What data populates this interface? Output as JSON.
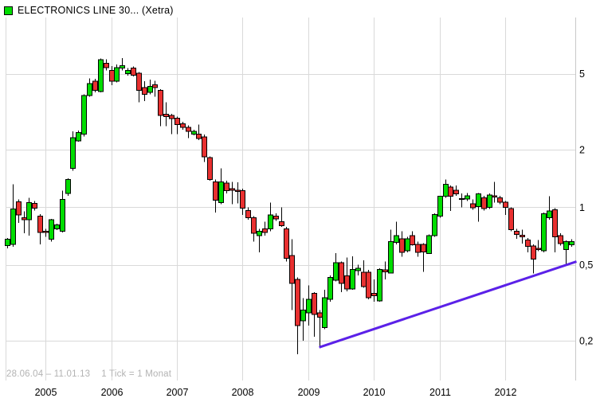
{
  "header": {
    "title": "ELECTRONICS LINE 30... (Xetra)",
    "legend_color": "#00dd00"
  },
  "footer": {
    "range_text": "28.06.04 – 11.01.13",
    "tick_text": "1 Tick = 1 Monat"
  },
  "chart_data": {
    "type": "candlestick",
    "scale": "log",
    "interval": "1 month",
    "title": "ELECTRONICS LINE 30... (Xetra)",
    "ylim": [
      0.16,
      6.5
    ],
    "grid": true,
    "y_ticks": [
      {
        "label": "5",
        "value": 5
      },
      {
        "label": "2",
        "value": 2
      },
      {
        "label": "1",
        "value": 1
      },
      {
        "label": "0,5",
        "value": 0.5
      },
      {
        "label": "0,2",
        "value": 0.2
      }
    ],
    "x_ticks": [
      "2005",
      "2006",
      "2007",
      "2008",
      "2009",
      "2010",
      "2011",
      "2012"
    ],
    "colors": {
      "up": "#00dd00",
      "down": "#e83030",
      "wick": "#000000",
      "grid": "#d9d9d9",
      "axis": "#c8c8c8",
      "trendline": "#5b21e8"
    },
    "trendline": {
      "start": {
        "month": "2009-03",
        "value": 0.185
      },
      "end": {
        "month": "2013-02",
        "value": 0.52
      }
    },
    "candles": [
      [
        "2004-06",
        0.63,
        0.69,
        0.61,
        0.68
      ],
      [
        "2004-07",
        0.64,
        1.32,
        0.62,
        0.98
      ],
      [
        "2004-08",
        1.07,
        1.1,
        0.83,
        0.91
      ],
      [
        "2004-09",
        0.88,
        0.95,
        0.73,
        0.86
      ],
      [
        "2004-10",
        0.86,
        1.12,
        0.71,
        1.06
      ],
      [
        "2004-11",
        1.05,
        1.08,
        0.96,
        0.99
      ],
      [
        "2004-12",
        0.9,
        0.92,
        0.64,
        0.74
      ],
      [
        "2005-01",
        0.75,
        0.77,
        0.7,
        0.74
      ],
      [
        "2005-02",
        0.68,
        0.87,
        0.66,
        0.86
      ],
      [
        "2005-03",
        0.77,
        0.82,
        0.76,
        0.81
      ],
      [
        "2005-04",
        0.75,
        1.22,
        0.74,
        1.1
      ],
      [
        "2005-05",
        1.18,
        1.42,
        1.15,
        1.4
      ],
      [
        "2005-06",
        1.6,
        2.5,
        1.55,
        2.31
      ],
      [
        "2005-07",
        2.23,
        2.52,
        2.2,
        2.46
      ],
      [
        "2005-08",
        2.42,
        3.9,
        2.35,
        3.84
      ],
      [
        "2005-09",
        3.84,
        4.73,
        3.8,
        4.44
      ],
      [
        "2005-10",
        4.57,
        4.7,
        4.0,
        4.1
      ],
      [
        "2005-11",
        4.03,
        6.0,
        4.0,
        5.92
      ],
      [
        "2005-12",
        5.66,
        5.95,
        5.2,
        5.37
      ],
      [
        "2006-01",
        5.21,
        5.49,
        4.35,
        4.58
      ],
      [
        "2006-02",
        4.58,
        5.6,
        4.5,
        5.39
      ],
      [
        "2006-03",
        5.35,
        6.03,
        5.2,
        5.5
      ],
      [
        "2006-04",
        5.0,
        5.35,
        4.9,
        5.21
      ],
      [
        "2006-05",
        5.35,
        5.45,
        4.85,
        4.91
      ],
      [
        "2006-06",
        5.04,
        5.1,
        3.55,
        4.1
      ],
      [
        "2006-07",
        4.23,
        4.58,
        3.59,
        3.91
      ],
      [
        "2006-08",
        3.99,
        4.66,
        3.9,
        4.3
      ],
      [
        "2006-09",
        4.37,
        4.6,
        3.8,
        4.23
      ],
      [
        "2006-10",
        4.1,
        4.15,
        2.66,
        3.03
      ],
      [
        "2006-11",
        3.07,
        3.55,
        2.66,
        2.98
      ],
      [
        "2006-12",
        3.03,
        3.08,
        2.42,
        2.91
      ],
      [
        "2007-01",
        2.93,
        2.98,
        2.42,
        2.71
      ],
      [
        "2007-02",
        2.73,
        2.8,
        2.55,
        2.62
      ],
      [
        "2007-03",
        2.62,
        2.68,
        2.3,
        2.5
      ],
      [
        "2007-04",
        2.42,
        2.55,
        2.38,
        2.5
      ],
      [
        "2007-05",
        2.42,
        2.71,
        2.25,
        2.29
      ],
      [
        "2007-06",
        2.34,
        2.4,
        1.73,
        1.84
      ],
      [
        "2007-07",
        1.82,
        1.85,
        1.38,
        1.4
      ],
      [
        "2007-08",
        1.36,
        1.4,
        0.94,
        1.09
      ],
      [
        "2007-09",
        1.06,
        1.6,
        1.04,
        1.36
      ],
      [
        "2007-10",
        1.34,
        1.38,
        1.18,
        1.22
      ],
      [
        "2007-11",
        1.25,
        1.36,
        1.04,
        1.23
      ],
      [
        "2007-12",
        1.23,
        1.35,
        1.05,
        1.21
      ],
      [
        "2008-01",
        1.22,
        1.25,
        0.91,
        0.99
      ],
      [
        "2008-02",
        0.96,
        1.0,
        0.86,
        0.88
      ],
      [
        "2008-03",
        0.88,
        0.9,
        0.66,
        0.73
      ],
      [
        "2008-04",
        0.71,
        0.77,
        0.58,
        0.75
      ],
      [
        "2008-05",
        0.77,
        0.84,
        0.71,
        0.74
      ],
      [
        "2008-06",
        0.77,
        1.06,
        0.75,
        0.91
      ],
      [
        "2008-07",
        0.9,
        0.93,
        0.85,
        0.87
      ],
      [
        "2008-08",
        0.84,
        1.0,
        0.79,
        0.8
      ],
      [
        "2008-09",
        0.77,
        0.79,
        0.52,
        0.54
      ],
      [
        "2008-10",
        0.56,
        0.68,
        0.29,
        0.4
      ],
      [
        "2008-11",
        0.42,
        0.43,
        0.17,
        0.24
      ],
      [
        "2008-12",
        0.255,
        0.335,
        0.2,
        0.29
      ],
      [
        "2009-01",
        0.28,
        0.39,
        0.24,
        0.33
      ],
      [
        "2009-02",
        0.355,
        0.36,
        0.21,
        0.275
      ],
      [
        "2009-03",
        0.28,
        0.29,
        0.186,
        0.266
      ],
      [
        "2009-04",
        0.235,
        0.37,
        0.23,
        0.337
      ],
      [
        "2009-05",
        0.33,
        0.44,
        0.32,
        0.43
      ],
      [
        "2009-06",
        0.415,
        0.575,
        0.41,
        0.513
      ],
      [
        "2009-07",
        0.513,
        0.52,
        0.36,
        0.4
      ],
      [
        "2009-08",
        0.437,
        0.546,
        0.363,
        0.373
      ],
      [
        "2009-09",
        0.373,
        0.555,
        0.37,
        0.473
      ],
      [
        "2009-10",
        0.466,
        0.5,
        0.44,
        0.48
      ],
      [
        "2009-11",
        0.458,
        0.528,
        0.38,
        0.385
      ],
      [
        "2009-12",
        0.458,
        0.47,
        0.33,
        0.337
      ],
      [
        "2010-01",
        0.355,
        0.42,
        0.32,
        0.345
      ],
      [
        "2010-02",
        0.323,
        0.48,
        0.32,
        0.473
      ],
      [
        "2010-03",
        0.47,
        0.52,
        0.42,
        0.46
      ],
      [
        "2010-04",
        0.453,
        0.765,
        0.45,
        0.66
      ],
      [
        "2010-05",
        0.655,
        0.84,
        0.64,
        0.71
      ],
      [
        "2010-06",
        0.684,
        0.75,
        0.55,
        0.58
      ],
      [
        "2010-07",
        0.592,
        0.7,
        0.58,
        0.684
      ],
      [
        "2010-08",
        0.71,
        0.75,
        0.63,
        0.637
      ],
      [
        "2010-09",
        0.64,
        0.66,
        0.55,
        0.58
      ],
      [
        "2010-10",
        0.64,
        0.65,
        0.46,
        0.585
      ],
      [
        "2010-11",
        0.574,
        0.72,
        0.57,
        0.712
      ],
      [
        "2010-12",
        0.71,
        0.93,
        0.7,
        0.918
      ],
      [
        "2011-01",
        0.897,
        1.15,
        0.88,
        1.14
      ],
      [
        "2011-02",
        1.14,
        1.4,
        1.12,
        1.317
      ],
      [
        "2011-03",
        1.276,
        1.3,
        0.957,
        1.14
      ],
      [
        "2011-04",
        1.225,
        1.3,
        1.15,
        1.178
      ],
      [
        "2011-05",
        1.11,
        1.18,
        1.0,
        1.1
      ],
      [
        "2011-06",
        1.105,
        1.19,
        1.08,
        1.148
      ],
      [
        "2011-07",
        1.043,
        1.1,
        0.97,
        0.996
      ],
      [
        "2011-08",
        1.01,
        1.19,
        0.84,
        1.178
      ],
      [
        "2011-09",
        1.123,
        1.15,
        0.96,
        0.985
      ],
      [
        "2011-10",
        1.0,
        1.18,
        0.98,
        1.16
      ],
      [
        "2011-11",
        1.15,
        1.36,
        1.06,
        1.13
      ],
      [
        "2011-12",
        1.123,
        1.15,
        1.04,
        1.062
      ],
      [
        "2012-01",
        1.062,
        1.08,
        0.91,
        1.0
      ],
      [
        "2012-02",
        0.985,
        1.0,
        0.75,
        0.765
      ],
      [
        "2012-03",
        0.75,
        0.77,
        0.684,
        0.72
      ],
      [
        "2012-04",
        0.715,
        0.765,
        0.645,
        0.7
      ],
      [
        "2012-05",
        0.675,
        0.69,
        0.58,
        0.623
      ],
      [
        "2012-06",
        0.627,
        0.64,
        0.45,
        0.535
      ],
      [
        "2012-07",
        0.61,
        0.675,
        0.59,
        0.6
      ],
      [
        "2012-08",
        0.592,
        0.94,
        0.58,
        0.927
      ],
      [
        "2012-09",
        0.88,
        1.14,
        0.86,
        0.957
      ],
      [
        "2012-10",
        0.973,
        0.99,
        0.58,
        0.7
      ],
      [
        "2012-11",
        0.71,
        0.73,
        0.63,
        0.645
      ],
      [
        "2012-12",
        0.6,
        0.67,
        0.505,
        0.66
      ],
      [
        "2013-01",
        0.637,
        0.68,
        0.62,
        0.66
      ]
    ]
  }
}
